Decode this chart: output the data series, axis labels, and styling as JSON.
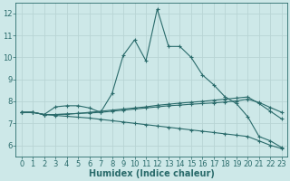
{
  "xlabel": "Humidex (Indice chaleur)",
  "xlim": [
    -0.5,
    23.5
  ],
  "ylim": [
    5.5,
    12.5
  ],
  "yticks": [
    6,
    7,
    8,
    9,
    10,
    11,
    12
  ],
  "xticks": [
    0,
    1,
    2,
    3,
    4,
    5,
    6,
    7,
    8,
    9,
    10,
    11,
    12,
    13,
    14,
    15,
    16,
    17,
    18,
    19,
    20,
    21,
    22,
    23
  ],
  "bg_color": "#cde8e8",
  "grid_color": "#b8d4d4",
  "line_color": "#2a6b6b",
  "lines": [
    [
      7.5,
      7.5,
      7.4,
      7.75,
      7.8,
      7.8,
      7.7,
      7.5,
      8.35,
      10.1,
      10.8,
      9.85,
      12.2,
      10.5,
      10.5,
      10.0,
      9.2,
      8.75,
      8.2,
      7.9,
      7.3,
      6.4,
      6.2,
      5.9
    ],
    [
      7.5,
      7.5,
      7.4,
      7.4,
      7.42,
      7.45,
      7.47,
      7.5,
      7.55,
      7.6,
      7.65,
      7.7,
      7.75,
      7.8,
      7.83,
      7.87,
      7.9,
      7.93,
      7.97,
      8.02,
      8.1,
      7.95,
      7.72,
      7.5
    ],
    [
      7.5,
      7.5,
      7.4,
      7.4,
      7.42,
      7.45,
      7.5,
      7.55,
      7.6,
      7.65,
      7.7,
      7.75,
      7.82,
      7.87,
      7.92,
      7.96,
      8.0,
      8.05,
      8.1,
      8.15,
      8.2,
      7.9,
      7.55,
      7.2
    ],
    [
      7.5,
      7.5,
      7.4,
      7.36,
      7.32,
      7.28,
      7.24,
      7.18,
      7.12,
      7.06,
      7.0,
      6.94,
      6.88,
      6.82,
      6.76,
      6.7,
      6.64,
      6.58,
      6.52,
      6.46,
      6.4,
      6.2,
      6.0,
      5.85
    ]
  ],
  "font_color": "#2a6b6b",
  "tick_fontsize": 6,
  "xlabel_fontsize": 7
}
